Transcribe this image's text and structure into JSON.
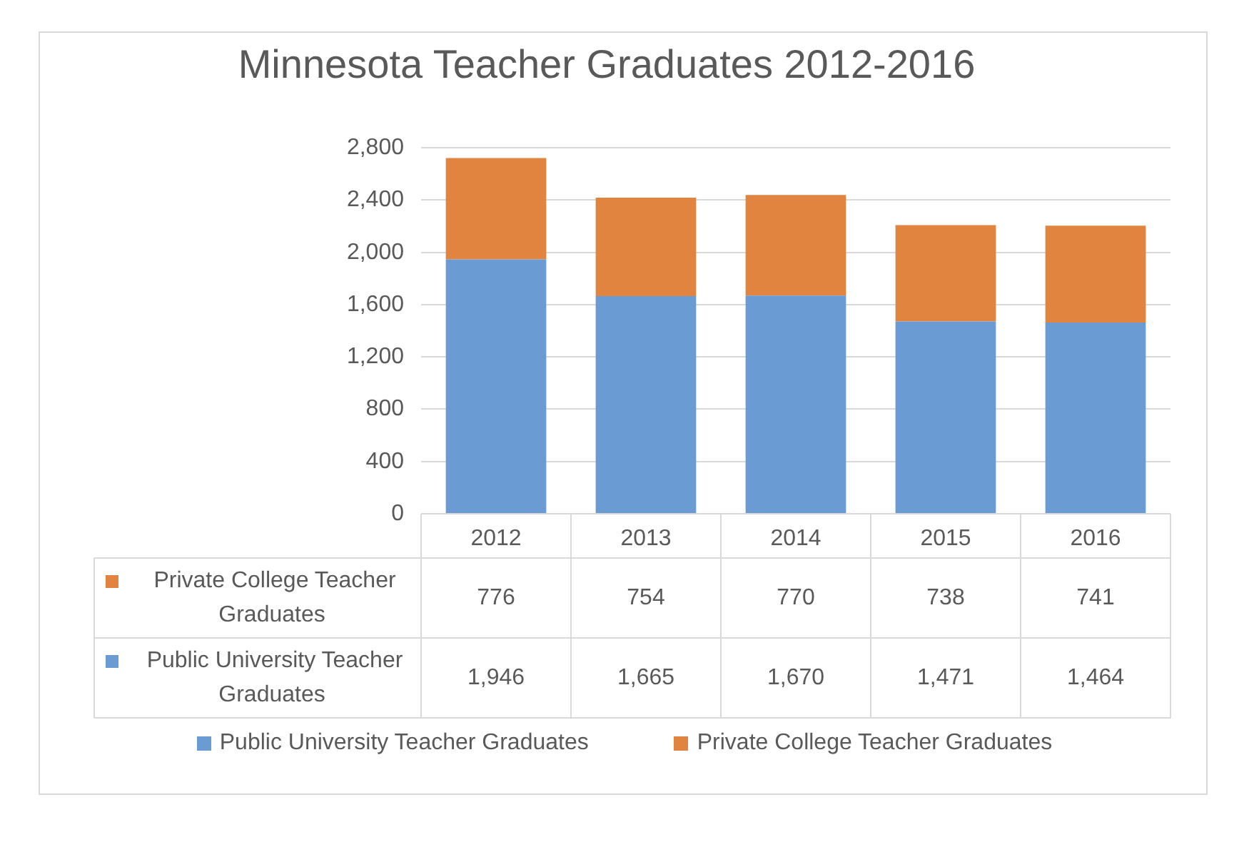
{
  "chart_data": {
    "type": "bar",
    "title": "Minnesota Teacher Graduates 2012-2016",
    "categories": [
      "2012",
      "2013",
      "2014",
      "2015",
      "2016"
    ],
    "stacked": true,
    "series": [
      {
        "name": "Public University Teacher Graduates",
        "color": "#6a9bd3",
        "values": [
          1946,
          1665,
          1670,
          1471,
          1464
        ],
        "value_labels": [
          "1,946",
          "1,665",
          "1,670",
          "1,471",
          "1,464"
        ]
      },
      {
        "name": "Private College Teacher Graduates",
        "color": "#e0843f",
        "values": [
          776,
          754,
          770,
          738,
          741
        ],
        "value_labels": [
          "776",
          "754",
          "770",
          "738",
          "741"
        ]
      }
    ],
    "ylim": [
      0,
      2800
    ],
    "yticks": [
      0,
      400,
      800,
      {
        "value": 1200,
        "label": "1,200"
      },
      {
        "value": 1600,
        "label": "1,600"
      },
      {
        "value": 2000,
        "label": "2,000"
      },
      {
        "value": 2400,
        "label": "2,400"
      },
      {
        "value": 2800,
        "label": "2,800"
      }
    ],
    "grid": "y",
    "legend": "bottom"
  }
}
